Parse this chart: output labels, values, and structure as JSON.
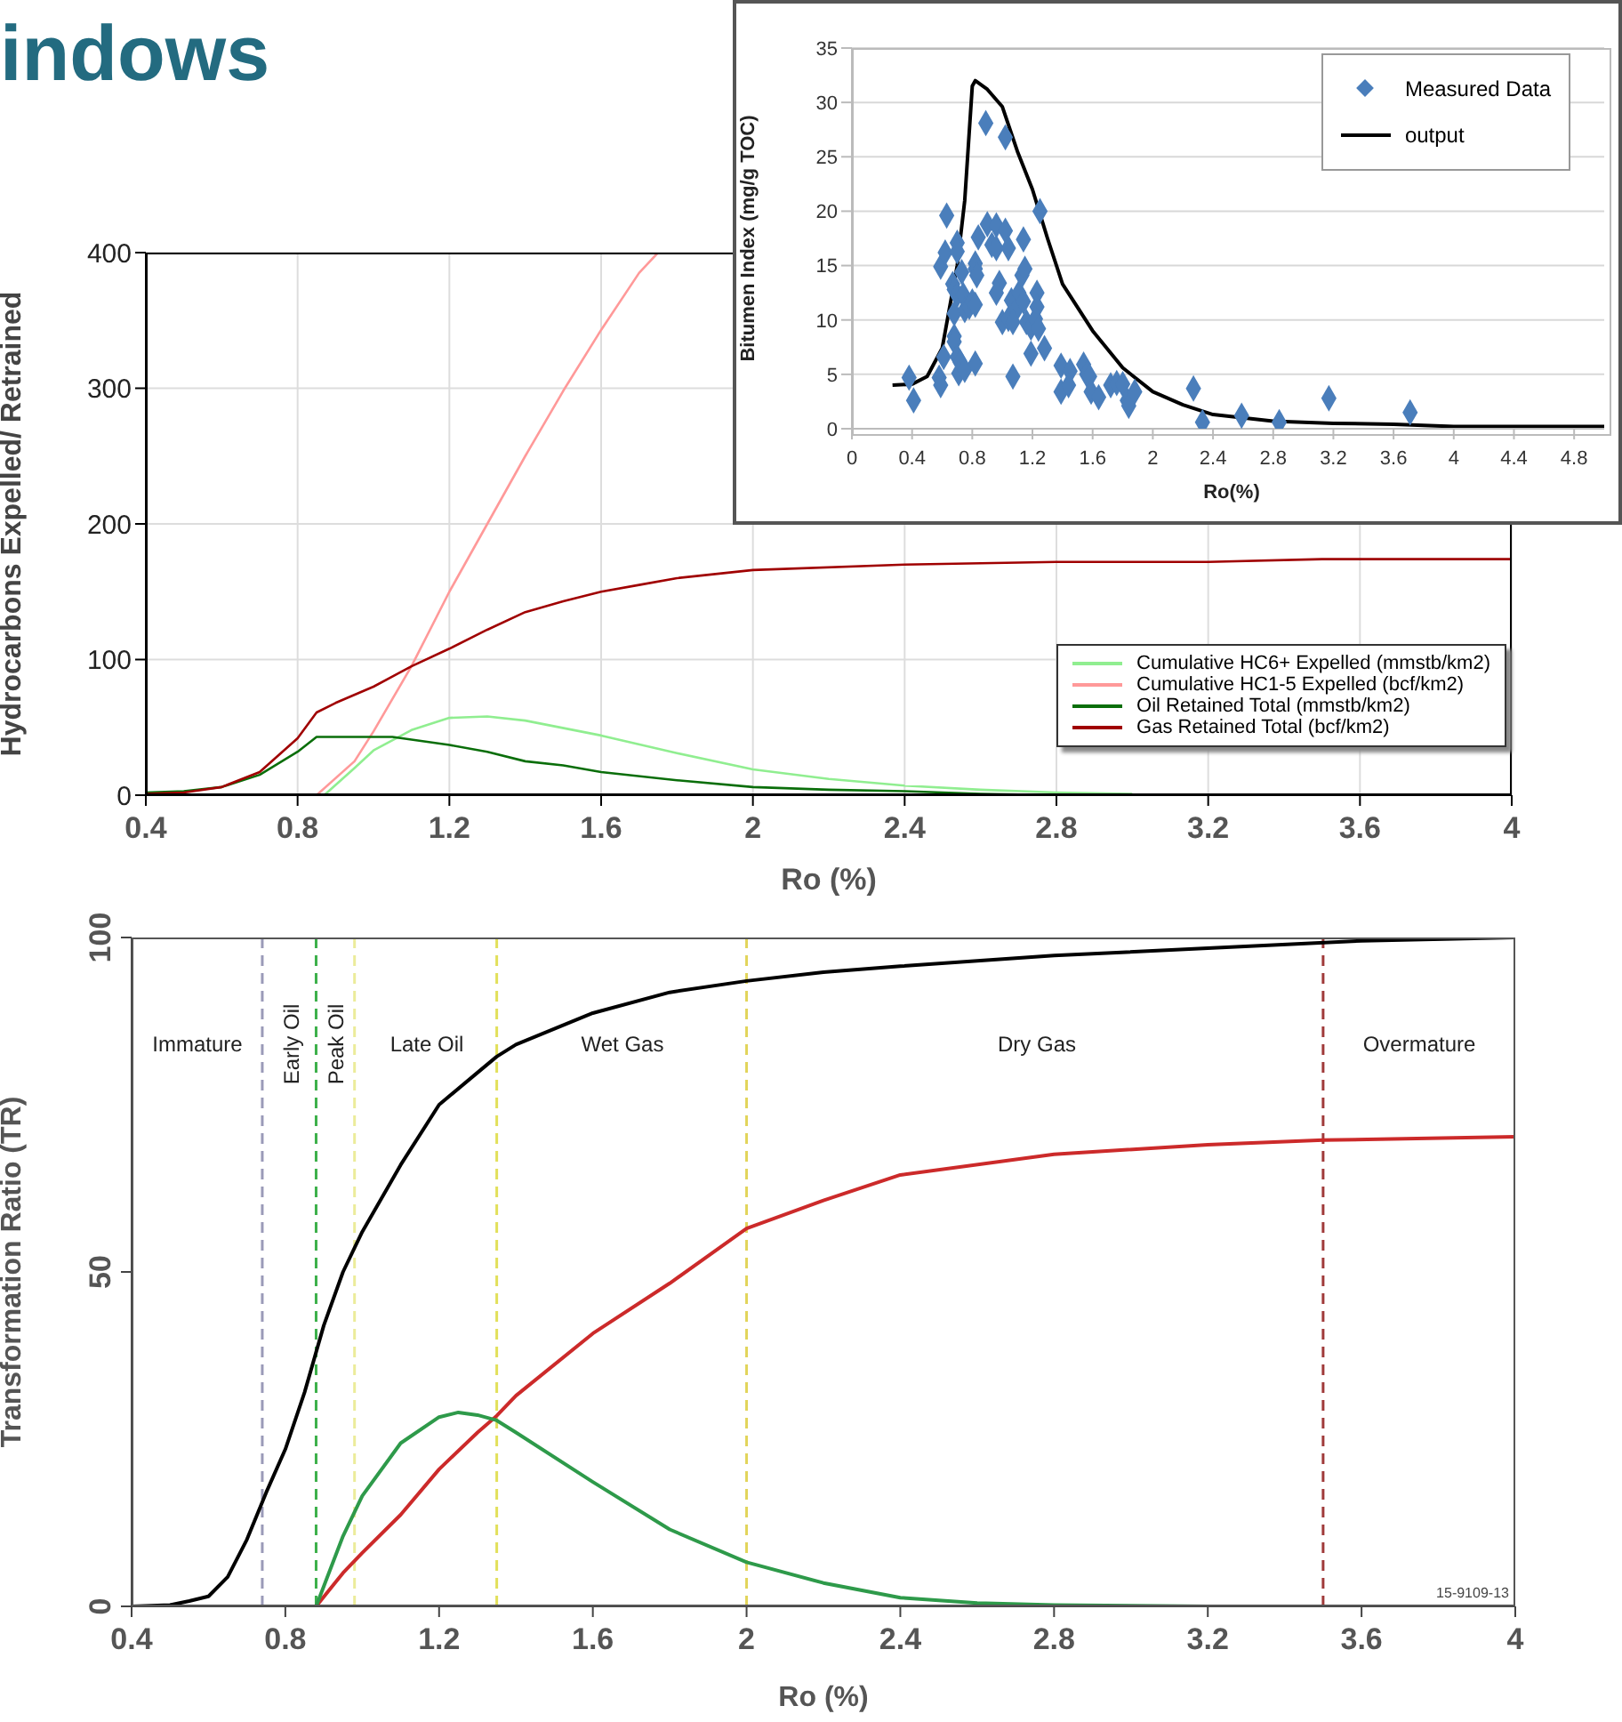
{
  "chart_data": [
    {
      "type": "line",
      "title": "indows",
      "xlabel": "Ro (%)",
      "ylabel": "Hydrocarbons Expelled/ Retrained",
      "xlim": [
        0.4,
        4
      ],
      "xticks": [
        0.4,
        0.8,
        1.2,
        1.6,
        2,
        2.4,
        2.8,
        3.2,
        3.6,
        4
      ],
      "ylim": [
        0,
        400
      ],
      "yticks": [
        0,
        100,
        200,
        300,
        400
      ],
      "grid": true,
      "legend": "bottom right",
      "marker": "none",
      "line_style": "solid",
      "series": [
        {
          "name": "Cumulative HC6+ Expelled (mmstb/km2)",
          "color": "#90ee90",
          "x": [
            0.87,
            0.95,
            1.0,
            1.1,
            1.2,
            1.3,
            1.4,
            1.6,
            1.8,
            2.0,
            2.2,
            2.4,
            2.6,
            2.8,
            3.0
          ],
          "values": [
            0,
            20,
            33,
            48,
            57,
            58,
            55,
            44,
            31,
            19,
            12,
            7,
            4,
            2,
            1
          ]
        },
        {
          "name": "Cumulative HC1-5 Expelled (bcf/km2)",
          "color": "#ff9999",
          "x": [
            0.85,
            0.95,
            1.0,
            1.1,
            1.2,
            1.3,
            1.4,
            1.5,
            1.6,
            1.7,
            1.75
          ],
          "values": [
            0,
            25,
            47,
            95,
            150,
            200,
            250,
            298,
            343,
            385,
            400
          ]
        },
        {
          "name": "Oil Retained Total (mmstb/km2)",
          "color": "#0a6e0a",
          "x": [
            0.4,
            0.5,
            0.6,
            0.7,
            0.8,
            0.85,
            0.9,
            1.0,
            1.05,
            1.1,
            1.2,
            1.3,
            1.4,
            1.5,
            1.6,
            1.8,
            2.0,
            2.2,
            2.4,
            2.6,
            2.8
          ],
          "values": [
            2,
            3,
            6,
            15,
            32,
            43,
            43,
            43,
            43,
            41,
            37,
            32,
            25,
            22,
            17,
            11,
            6,
            4,
            3,
            1,
            0
          ]
        },
        {
          "name": "Gas Retained Total (bcf/km2)",
          "color": "#a00000",
          "x": [
            0.4,
            0.5,
            0.6,
            0.7,
            0.8,
            0.85,
            0.9,
            1.0,
            1.1,
            1.2,
            1.3,
            1.4,
            1.5,
            1.6,
            1.7,
            1.8,
            2.0,
            2.4,
            2.8,
            3.2,
            3.5,
            4.0
          ],
          "values": [
            1,
            2,
            6,
            17,
            42,
            61,
            68,
            80,
            95,
            108,
            122,
            135,
            143,
            150,
            155,
            160,
            166,
            170,
            172,
            172,
            174,
            174
          ]
        }
      ]
    },
    {
      "type": "scatter",
      "xlabel": "Ro(%)",
      "ylabel": "Bitumen Index (mg/g TOC)",
      "xlim": [
        0,
        5
      ],
      "xticks": [
        0,
        0.4,
        0.8,
        1.2,
        1.6,
        2,
        2.4,
        2.8,
        3.2,
        3.6,
        4,
        4.4,
        4.8
      ],
      "ylim": [
        0,
        35
      ],
      "yticks": [
        0,
        5,
        10,
        15,
        20,
        25,
        30,
        35
      ],
      "grid": "y",
      "legend": "top right",
      "series": [
        {
          "name": "Measured Data",
          "marker": "diamond",
          "color": "#4a7ebb",
          "x": [
            0.38,
            0.41,
            0.63,
            0.59,
            0.62,
            0.58,
            0.59,
            0.61,
            0.7,
            0.7,
            0.67,
            0.68,
            0.7,
            0.68,
            0.68,
            0.68,
            0.7,
            0.72,
            0.71,
            0.75,
            0.73,
            0.74,
            0.75,
            0.78,
            0.8,
            0.82,
            0.82,
            0.82,
            0.83,
            0.84,
            0.82,
            0.89,
            0.9,
            0.96,
            1.02,
            0.93,
            0.96,
            1.04,
            1.14,
            1.02,
            0.98,
            0.96,
            1.0,
            1.04,
            1.06,
            1.09,
            1.07,
            1.11,
            1.13,
            1.15,
            1.14,
            1.16,
            1.19,
            1.23,
            1.23,
            1.22,
            1.24,
            1.25,
            1.19,
            1.28,
            1.07,
            1.39,
            1.45,
            1.39,
            1.44,
            1.54,
            1.56,
            1.58,
            1.59,
            1.64,
            1.72,
            1.76,
            1.8,
            1.83,
            1.84,
            1.88,
            2.27,
            2.33,
            2.59,
            2.84,
            3.17,
            3.71
          ],
          "values": [
            4.7,
            2.6,
            19.6,
            14.9,
            16.2,
            4.7,
            4.0,
            6.6,
            17.1,
            16.3,
            13.3,
            12.8,
            12.3,
            10.6,
            8.5,
            8.0,
            6.6,
            6.1,
            5.1,
            5.4,
            14.4,
            12.3,
            10.9,
            11.2,
            11.7,
            11.4,
            14.7,
            15.2,
            14.1,
            17.6,
            6.0,
            28.1,
            18.8,
            18.7,
            18.2,
            16.9,
            16.6,
            16.6,
            17.4,
            26.8,
            13.4,
            12.5,
            9.8,
            10.1,
            11.8,
            10.9,
            9.8,
            12.5,
            14.1,
            14.7,
            11.7,
            9.8,
            9.3,
            12.5,
            11.2,
            10.1,
            9.2,
            20.0,
            6.9,
            7.4,
            4.8,
            5.8,
            5.3,
            3.4,
            4.0,
            5.9,
            5.0,
            4.8,
            3.4,
            2.9,
            4.0,
            4.2,
            4.1,
            2.6,
            2.1,
            3.4,
            3.7,
            0.6,
            1.2,
            0.6,
            2.8,
            1.5
          ]
        },
        {
          "name": "output",
          "type": "line",
          "marker": "none",
          "line_style": "solid",
          "color": "#000000",
          "x": [
            0.27,
            0.4,
            0.5,
            0.6,
            0.7,
            0.75,
            0.8,
            0.82,
            0.9,
            1.0,
            1.1,
            1.2,
            1.3,
            1.4,
            1.6,
            1.8,
            2.0,
            2.2,
            2.4,
            2.8,
            3.2,
            3.6,
            4.0,
            5.0
          ],
          "values": [
            4,
            4.1,
            4.8,
            7.4,
            15,
            21,
            31.5,
            32,
            31.2,
            29.6,
            25.5,
            22,
            17.5,
            13.3,
            9,
            5.6,
            3.4,
            2.2,
            1.3,
            0.7,
            0.5,
            0.4,
            0.2,
            0.2
          ]
        }
      ]
    },
    {
      "type": "line",
      "xlabel": "Ro (%)",
      "ylabel": "Transformation Ratio (TR)",
      "xlim": [
        0.4,
        4
      ],
      "xticks": [
        0.4,
        0.8,
        1.2,
        1.6,
        2,
        2.4,
        2.8,
        3.2,
        3.6,
        4
      ],
      "ylim": [
        0,
        100
      ],
      "yticks": [
        0,
        50,
        100
      ],
      "marker": "none",
      "line_style": "solid",
      "series": [
        {
          "color": "#000000",
          "x": [
            0.4,
            0.5,
            0.55,
            0.6,
            0.65,
            0.7,
            0.75,
            0.8,
            0.85,
            0.9,
            0.95,
            1.0,
            1.1,
            1.2,
            1.3,
            1.35,
            1.4,
            1.6,
            1.8,
            2.0,
            2.2,
            2.4,
            2.8,
            3.2,
            3.6,
            4.0
          ],
          "values": [
            0,
            0.2,
            0.8,
            1.5,
            4.4,
            10,
            17,
            23.5,
            32,
            42,
            50,
            56,
            66,
            75,
            79.8,
            82.2,
            84,
            88.7,
            91.8,
            93.5,
            94.8,
            95.7,
            97.3,
            98.4,
            99.5,
            100
          ]
        },
        {
          "color": "#cc2a2a",
          "x": [
            0.88,
            0.95,
            1.0,
            1.1,
            1.2,
            1.3,
            1.35,
            1.4,
            1.6,
            1.8,
            2.0,
            2.2,
            2.4,
            2.8,
            3.2,
            3.5,
            4.0
          ],
          "values": [
            0,
            5,
            8,
            13.7,
            20.5,
            26,
            28.5,
            31.5,
            40.8,
            48.3,
            56.5,
            60.7,
            64.5,
            67.6,
            69,
            69.7,
            70.2
          ]
        },
        {
          "color": "#2e9a4a",
          "x": [
            0.88,
            0.9,
            0.95,
            1.0,
            1.1,
            1.2,
            1.25,
            1.3,
            1.35,
            1.4,
            1.6,
            1.8,
            2.0,
            2.2,
            2.4,
            2.6,
            2.8,
            3.2,
            4.0
          ],
          "values": [
            0,
            3,
            10.5,
            16.5,
            24.4,
            28.3,
            29,
            28.6,
            27.8,
            26,
            18.6,
            11.5,
            6.6,
            3.5,
            1.3,
            0.5,
            0.2,
            0,
            0
          ]
        }
      ],
      "ref_lines": [
        {
          "axis": "x",
          "value": 0.74,
          "color": "#9a9ab8",
          "line_style": "dashed"
        },
        {
          "axis": "x",
          "value": 0.88,
          "color": "#3cb04a",
          "line_style": "dashed"
        },
        {
          "axis": "x",
          "value": 0.98,
          "color": "#ecec9a",
          "line_style": "dashed"
        },
        {
          "axis": "x",
          "value": 1.35,
          "color": "#e2e05a",
          "line_style": "dashed"
        },
        {
          "axis": "x",
          "value": 2.0,
          "color": "#e2d45a",
          "line_style": "dashed"
        },
        {
          "axis": "x",
          "value": 3.5,
          "color": "#a03a3a",
          "line_style": "dashed"
        }
      ],
      "annotations": [
        "Immature",
        "Early Oil",
        "Peak Oil",
        "Late Oil",
        "Wet Gas",
        "Dry Gas",
        "Overmature",
        "15-9109-13"
      ]
    }
  ]
}
